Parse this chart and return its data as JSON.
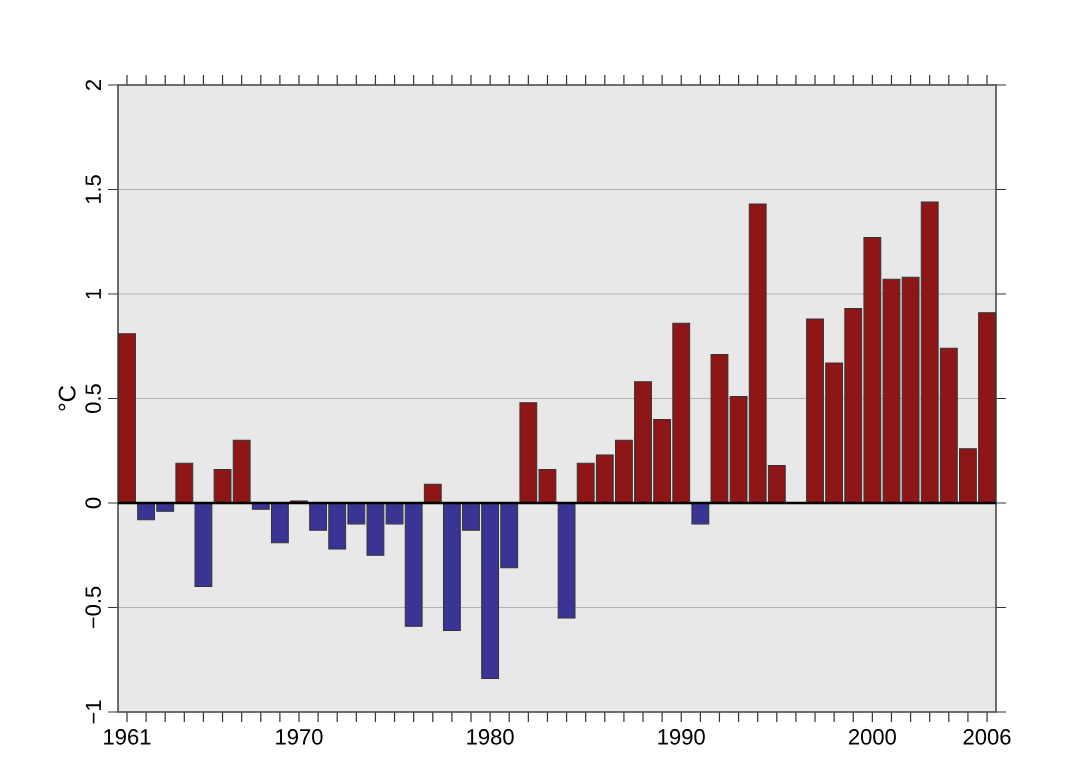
{
  "chart_data": {
    "type": "bar",
    "ylabel": "°C",
    "categories": [
      "1961",
      null,
      null,
      null,
      null,
      null,
      null,
      null,
      null,
      "1970",
      null,
      null,
      null,
      null,
      null,
      null,
      null,
      null,
      null,
      "1980",
      null,
      null,
      null,
      null,
      null,
      null,
      null,
      null,
      null,
      "1990",
      null,
      null,
      null,
      null,
      null,
      null,
      null,
      null,
      null,
      "2000",
      null,
      null,
      null,
      null,
      null,
      "2006"
    ],
    "values": [
      0.81,
      -0.08,
      -0.04,
      0.19,
      -0.4,
      0.16,
      0.3,
      -0.03,
      -0.19,
      0.01,
      -0.13,
      -0.22,
      -0.1,
      -0.25,
      -0.1,
      -0.59,
      0.09,
      -0.61,
      -0.13,
      -0.84,
      -0.31,
      0.48,
      0.16,
      -0.55,
      0.19,
      0.23,
      0.3,
      0.58,
      0.4,
      0.86,
      -0.1,
      0.71,
      0.51,
      1.43,
      0.18,
      0,
      0.88,
      0.67,
      0.93,
      1.27,
      1.07,
      1.08,
      1.44,
      0.74,
      0.26,
      0.91
    ],
    "colors": [
      "#8e1616",
      "#3a3494",
      "#3a3494",
      "#8e1616",
      "#3a3494",
      "#8e1616",
      "#8e1616",
      "#3a3494",
      "#3a3494",
      "#8e1616",
      "#3a3494",
      "#3a3494",
      "#3a3494",
      "#3a3494",
      "#3a3494",
      "#3a3494",
      "#8e1616",
      "#3a3494",
      "#3a3494",
      "#3a3494",
      "#3a3494",
      "#8e1616",
      "#8e1616",
      "#3a3494",
      "#8e1616",
      "#8e1616",
      "#8e1616",
      "#8e1616",
      "#8e1616",
      "#8e1616",
      "#3a3494",
      "#8e1616",
      "#8e1616",
      "#8e1616",
      "#8e1616",
      "#8e1616",
      "#8e1616",
      "#8e1616",
      "#8e1616",
      "#8e1616",
      "#8e1616",
      "#8e1616",
      "#8e1616",
      "#8e1616",
      "#8e1616",
      "#8e1616"
    ],
    "ylim": [
      -1,
      2
    ],
    "yticks": [
      {
        "value": -1,
        "label": "−1"
      },
      {
        "value": -0.5,
        "label": "−0.5"
      },
      0,
      0.5,
      1,
      1.5,
      2
    ],
    "grid": "y"
  }
}
